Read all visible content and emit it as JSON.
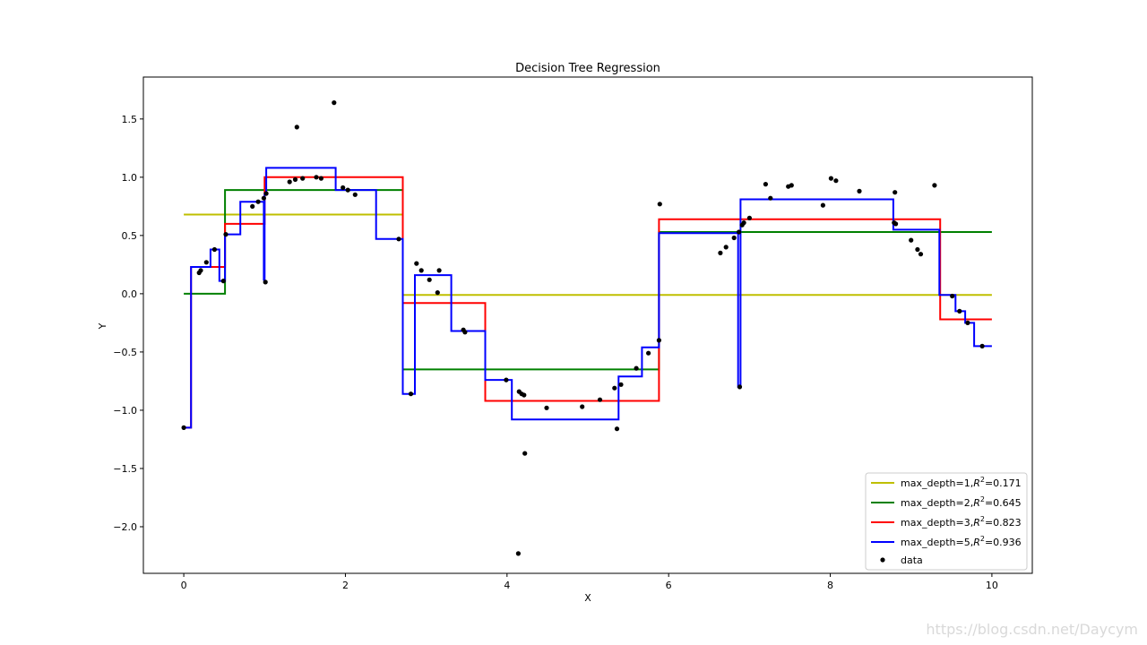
{
  "chart_data": {
    "type": "line",
    "title": "Decision Tree Regression",
    "xlabel": "X",
    "ylabel": "Y",
    "xlim": [
      -0.5,
      10.5
    ],
    "ylim": [
      -2.4,
      1.86
    ],
    "xticks": [
      0,
      2,
      4,
      6,
      8,
      10
    ],
    "yticks": [
      -2.0,
      -1.5,
      -1.0,
      -0.5,
      0.0,
      0.5,
      1.0,
      1.5
    ],
    "ytick_labels": [
      "−2.0",
      "−1.5",
      "−1.0",
      "−0.5",
      "0.0",
      "0.5",
      "1.0",
      "1.5"
    ],
    "grid": false,
    "legend_position": "lower-right",
    "series": [
      {
        "name": "max_depth=1,R²=0.171",
        "legend_prefix": "max_depth=1,",
        "legend_r2": "R",
        "legend_sup": "2",
        "legend_value": "=0.171",
        "color": "#bfbf00",
        "x": [
          0,
          2.71,
          2.71,
          10
        ],
        "y": [
          0.68,
          0.68,
          -0.01,
          -0.01
        ]
      },
      {
        "name": "max_depth=2,R²=0.645",
        "legend_prefix": "max_depth=2,",
        "legend_r2": "R",
        "legend_sup": "2",
        "legend_value": "=0.645",
        "color": "#008000",
        "x": [
          0,
          0.51,
          0.51,
          2.71,
          2.71,
          5.88,
          5.88,
          10
        ],
        "y": [
          0.0,
          0.0,
          0.89,
          0.89,
          -0.65,
          -0.65,
          0.53,
          0.53
        ]
      },
      {
        "name": "max_depth=3,R²=0.823",
        "legend_prefix": "max_depth=3,",
        "legend_r2": "R",
        "legend_sup": "2",
        "legend_value": "=0.823",
        "color": "#ff0000",
        "x": [
          0,
          0.09,
          0.09,
          0.51,
          0.51,
          1.0,
          1.0,
          2.71,
          2.71,
          3.73,
          3.73,
          5.88,
          5.88,
          9.36,
          9.36,
          10
        ],
        "y": [
          -1.15,
          -1.15,
          0.23,
          0.23,
          0.6,
          0.6,
          1.0,
          1.0,
          -0.08,
          -0.08,
          -0.92,
          -0.92,
          0.64,
          0.64,
          -0.22,
          -0.22
        ]
      },
      {
        "name": "max_depth=5,R²=0.936",
        "legend_prefix": "max_depth=5,",
        "legend_r2": "R",
        "legend_sup": "2",
        "legend_value": "=0.936",
        "color": "#0000ff",
        "x": [
          0,
          0.09,
          0.09,
          0.33,
          0.33,
          0.44,
          0.44,
          0.51,
          0.51,
          0.7,
          0.7,
          0.99,
          0.99,
          1.0,
          1.0,
          1.02,
          1.02,
          1.88,
          1.88,
          2.38,
          2.38,
          2.71,
          2.71,
          2.86,
          2.86,
          3.31,
          3.31,
          3.73,
          3.73,
          4.06,
          4.06,
          5.38,
          5.38,
          5.67,
          5.67,
          5.88,
          5.88,
          6.86,
          6.86,
          6.89,
          6.89,
          8.78,
          8.78,
          9.35,
          9.35,
          9.55,
          9.55,
          9.67,
          9.67,
          9.78,
          9.78,
          10
        ],
        "y": [
          -1.15,
          -1.15,
          0.23,
          0.23,
          0.38,
          0.38,
          0.11,
          0.11,
          0.51,
          0.51,
          0.79,
          0.79,
          0.12,
          0.12,
          0.86,
          0.86,
          1.08,
          1.08,
          0.89,
          0.89,
          0.47,
          0.47,
          -0.86,
          -0.86,
          0.16,
          0.16,
          -0.32,
          -0.32,
          -0.74,
          -0.74,
          -1.08,
          -1.08,
          -0.71,
          -0.71,
          -0.46,
          -0.46,
          0.52,
          0.52,
          -0.8,
          -0.8,
          0.81,
          0.81,
          0.55,
          0.55,
          -0.01,
          -0.01,
          -0.15,
          -0.15,
          -0.25,
          -0.25,
          -0.45,
          -0.45
        ]
      }
    ],
    "scatter": {
      "name": "data",
      "color": "#000000",
      "x": [
        0.0,
        0.19,
        0.21,
        0.28,
        0.38,
        0.49,
        0.52,
        0.85,
        0.92,
        0.99,
        1.01,
        1.02,
        1.31,
        1.38,
        1.4,
        1.47,
        1.64,
        1.7,
        1.86,
        1.97,
        2.03,
        2.12,
        2.66,
        2.81,
        2.88,
        2.94,
        3.04,
        3.14,
        3.16,
        3.46,
        3.48,
        3.99,
        4.15,
        4.18,
        4.21,
        4.22,
        4.49,
        4.93,
        5.15,
        5.33,
        5.36,
        5.41,
        5.6,
        5.75,
        5.88,
        5.89,
        6.64,
        6.71,
        6.81,
        6.87,
        6.88,
        6.91,
        6.93,
        7.0,
        7.2,
        7.26,
        7.48,
        7.52,
        7.91,
        8.01,
        8.07,
        8.36,
        8.79,
        8.8,
        8.81,
        9.0,
        9.08,
        9.12,
        9.29,
        9.51,
        9.6,
        9.7,
        9.88
      ],
      "y": [
        -1.15,
        0.18,
        0.2,
        0.27,
        0.38,
        0.11,
        0.51,
        0.75,
        0.79,
        0.82,
        0.1,
        0.86,
        0.96,
        0.98,
        1.43,
        0.99,
        1.0,
        0.99,
        1.64,
        0.91,
        0.89,
        0.85,
        0.47,
        -0.86,
        0.26,
        0.2,
        0.12,
        0.01,
        0.2,
        -0.31,
        -0.33,
        -0.74,
        -0.84,
        -0.86,
        -0.87,
        -1.37,
        -0.98,
        -0.97,
        -0.91,
        -0.81,
        -1.16,
        -0.78,
        -0.64,
        -0.51,
        -0.4,
        0.77,
        0.35,
        0.4,
        0.48,
        0.53,
        -0.8,
        0.59,
        0.61,
        0.65,
        0.94,
        0.82,
        0.92,
        0.93,
        0.76,
        0.99,
        0.97,
        0.88,
        0.61,
        0.87,
        0.6,
        0.46,
        0.38,
        0.34,
        0.93,
        -0.02,
        -0.15,
        -0.25,
        -0.45
      ]
    },
    "extra_points": [
      {
        "x": 4.14,
        "y": -2.23
      }
    ]
  },
  "watermark": "https://blog.csdn.net/Daycym"
}
